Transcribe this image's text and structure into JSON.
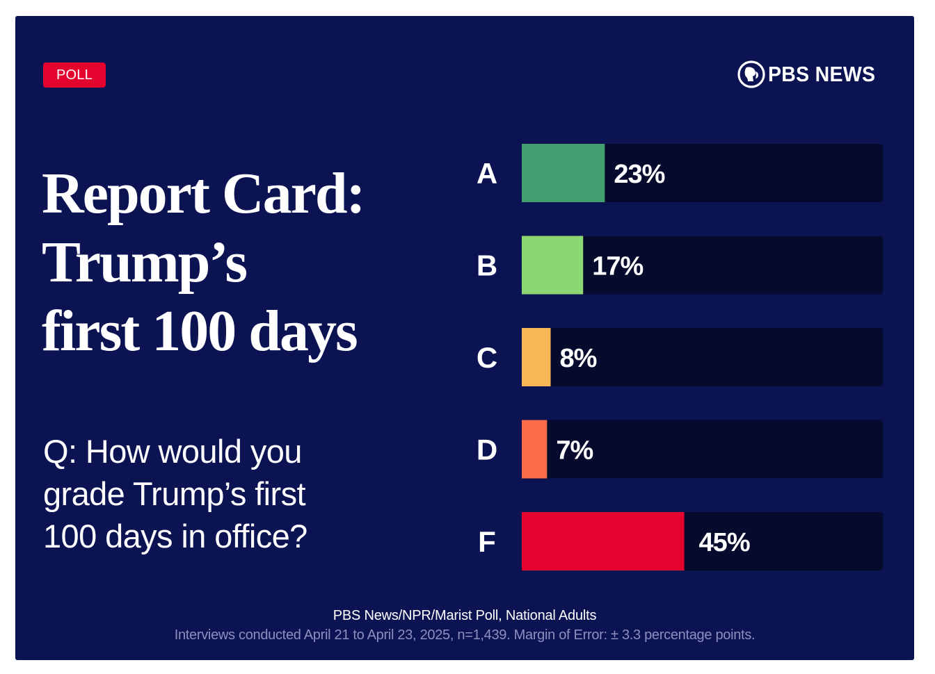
{
  "badge": {
    "label": "POLL",
    "color": "#e4032e"
  },
  "brand": {
    "name": "PBS NEWS",
    "icon": "pbs-head-icon"
  },
  "headline": {
    "lines": [
      "Report Card:",
      "Trump’s",
      "first 100 days"
    ]
  },
  "question": {
    "lines": [
      "Q: How would you",
      "grade Trump’s first",
      "100 days in office?"
    ]
  },
  "chart_data": {
    "type": "bar",
    "orientation": "horizontal",
    "categories": [
      "A",
      "B",
      "C",
      "D",
      "F"
    ],
    "values": [
      23,
      17,
      8,
      7,
      45
    ],
    "value_labels": [
      "23%",
      "17%",
      "8%",
      "7%",
      "45%"
    ],
    "colors": [
      "#42a070",
      "#8bd872",
      "#f8b654",
      "#ff6c4a",
      "#e4032e"
    ],
    "track_color": "#060b2d",
    "unit": "%",
    "xlim": [
      0,
      100
    ],
    "title": "Q: How would you grade Trump’s first 100 days in office?",
    "xlabel": "",
    "ylabel": "",
    "grid": false,
    "legend": "none"
  },
  "footer": {
    "source": "PBS News/NPR/Marist Poll, National Adults",
    "note": "Interviews conducted April 21 to April 23, 2025, n=1,439. Margin of Error: ± 3.3 percentage points."
  }
}
